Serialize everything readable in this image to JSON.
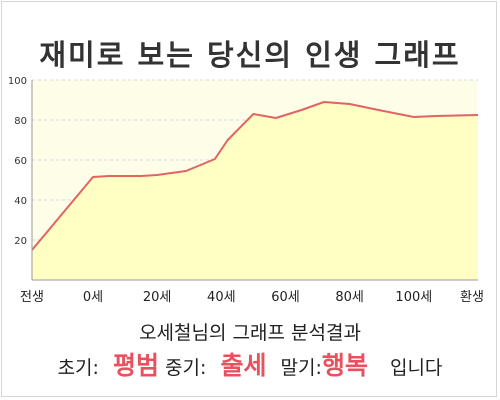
{
  "title": "재미로 보는 당신의 인생 그래프",
  "chart_data": {
    "type": "area",
    "title": "재미로 보는 당신의 인생 그래프",
    "x": [
      -19,
      0,
      5,
      15,
      20,
      29,
      38,
      42,
      50,
      57,
      65,
      72,
      80,
      89,
      100,
      107,
      120
    ],
    "y": [
      15,
      51.5,
      52,
      52,
      52.5,
      54.5,
      60.5,
      70,
      83,
      81,
      85,
      89,
      88,
      85,
      81.5,
      82,
      82.5
    ],
    "x_ticks": [
      {
        "value": -19,
        "label": "전생"
      },
      {
        "value": 0,
        "label": "0세"
      },
      {
        "value": 20,
        "label": "20세"
      },
      {
        "value": 40,
        "label": "40세"
      },
      {
        "value": 60,
        "label": "60세"
      },
      {
        "value": 80,
        "label": "80세"
      },
      {
        "value": 100,
        "label": "100세"
      },
      {
        "value": 120,
        "label": "환생"
      }
    ],
    "y_ticks": [
      "20",
      "40",
      "60",
      "80",
      "100"
    ],
    "ylim": [
      0,
      100
    ],
    "grid": true,
    "colors": {
      "line": "#e06464",
      "fill": "#ffffc0",
      "grid": "#d8d8d8"
    }
  },
  "summary": {
    "heading": "오세철님의 그래프 분석결과",
    "early_label": "초기:",
    "early_value": "평범",
    "middle_label": "중기:",
    "middle_value": "출세",
    "late_label": "말기:",
    "late_value": "행복",
    "suffix": "입니다"
  }
}
